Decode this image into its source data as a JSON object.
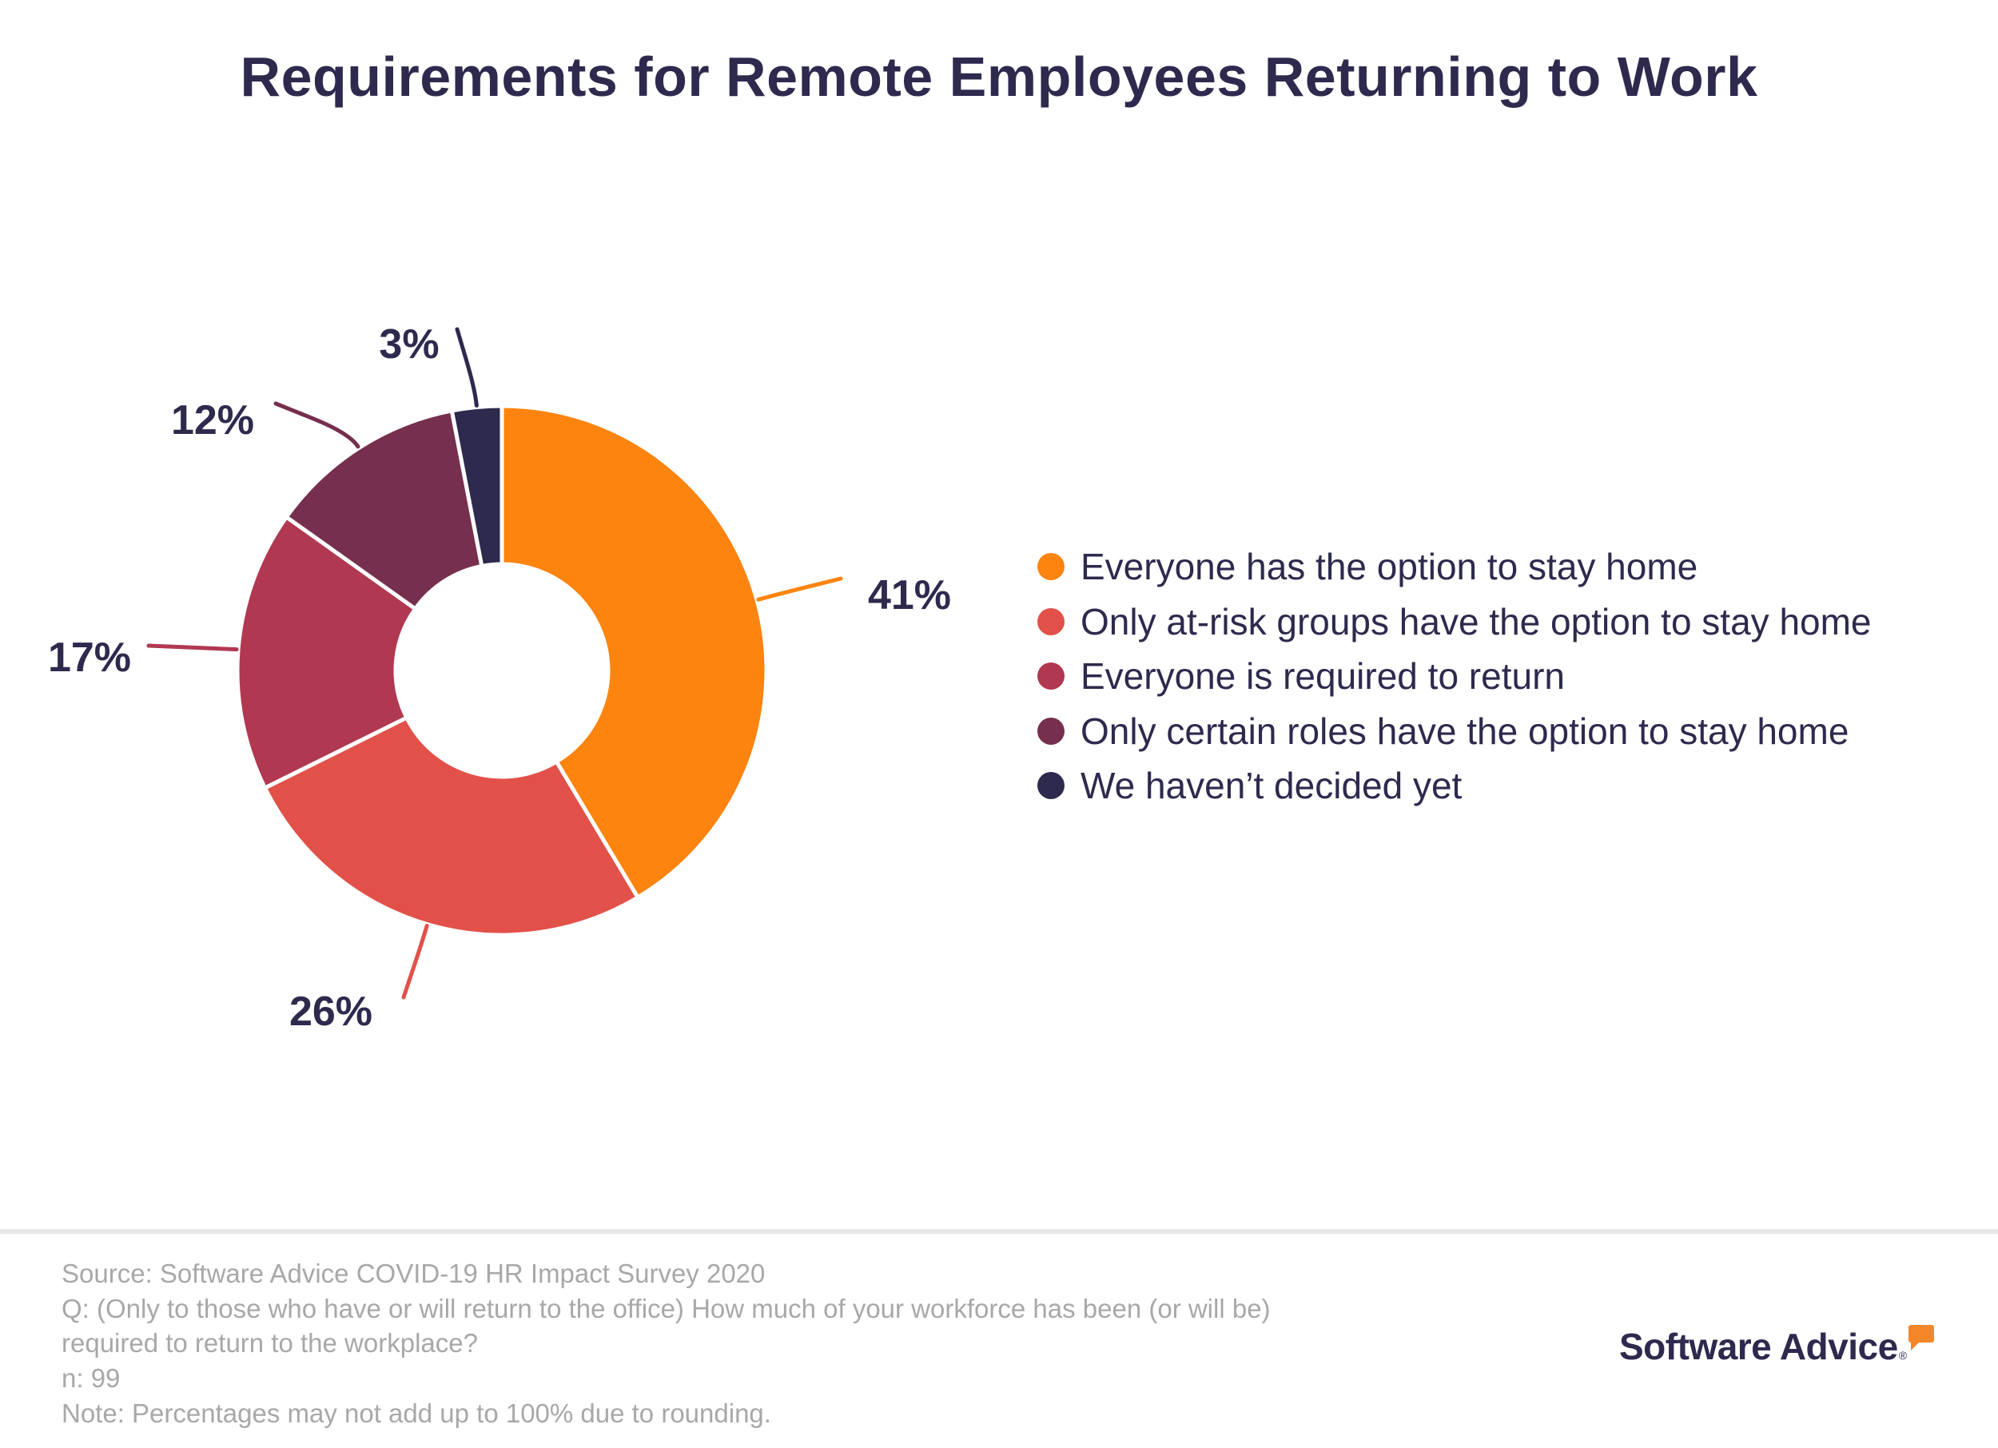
{
  "chart_data": {
    "type": "pie",
    "variant": "donut",
    "title": "Requirements for Remote Employees Returning to Work",
    "slices": [
      {
        "label": "Everyone has the option to stay home",
        "value": 41,
        "display": "41%",
        "color": "#fd840f"
      },
      {
        "label": "Only at-risk groups have the option to stay home",
        "value": 26,
        "display": "26%",
        "color": "#e25149"
      },
      {
        "label": "Everyone is required to return",
        "value": 17,
        "display": "17%",
        "color": "#b13851"
      },
      {
        "label": "Only certain roles have the option to stay home",
        "value": 12,
        "display": "12%",
        "color": "#762f4e"
      },
      {
        "label": "We haven’t decided yet",
        "value": 3,
        "display": "3%",
        "color": "#2d2a4e"
      }
    ],
    "legend_position": "right"
  },
  "footer": {
    "source": "Source: Software Advice COVID-19 HR Impact Survey 2020",
    "question_line1": "Q: (Only to those who have or will return to the office) How much of your workforce has been (or will be)",
    "question_line2": "required to return to the workplace?",
    "sample": "n: 99",
    "note": "Note: Percentages may not add up to 100% due to rounding."
  },
  "logo": {
    "text": "Software Advice",
    "registered": "®",
    "accent_color": "#f5862a"
  }
}
